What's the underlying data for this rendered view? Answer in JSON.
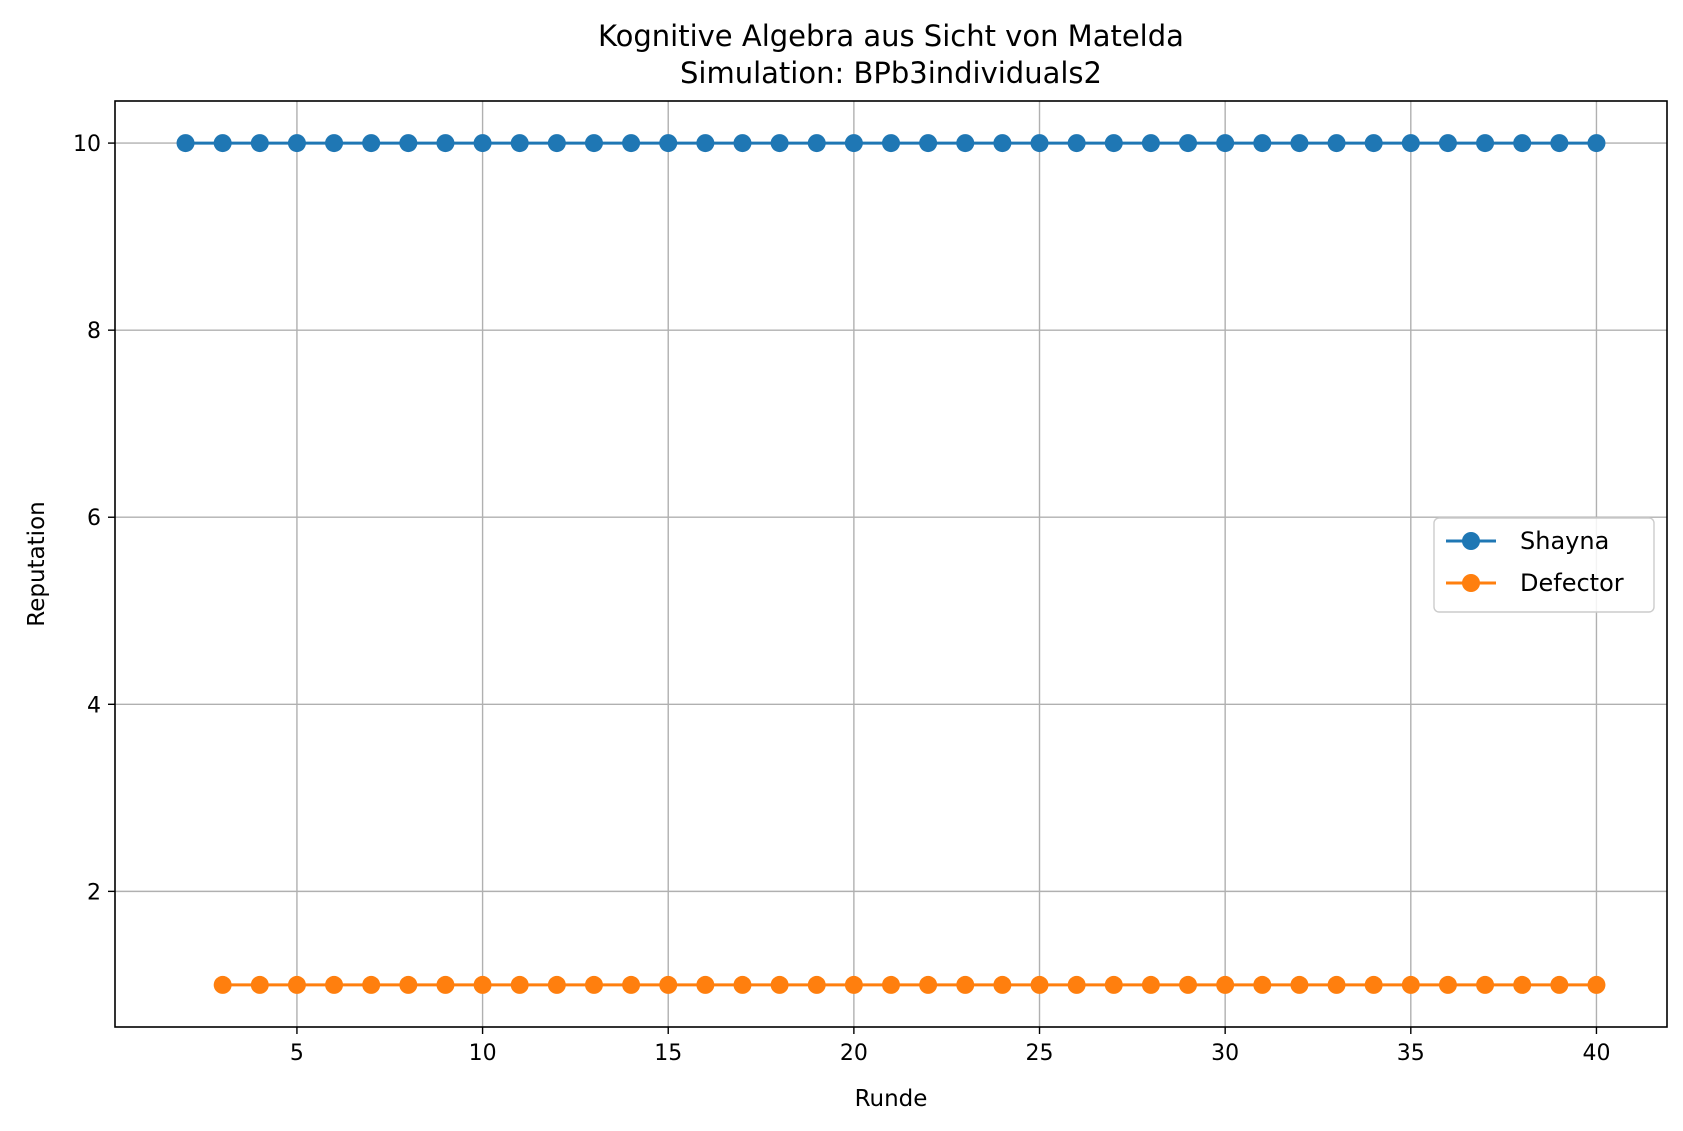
{
  "chart_data": {
    "type": "line",
    "title": "Kognitive Algebra aus Sicht von Matelda",
    "subtitle": "Simulation: BPb3individuals2",
    "xlabel": "Runde",
    "ylabel": "Reputation",
    "xlim": [
      0.1,
      41.9
    ],
    "ylim": [
      0.55,
      10.45
    ],
    "xticks": [
      5,
      10,
      15,
      20,
      25,
      30,
      35,
      40
    ],
    "yticks": [
      2,
      4,
      6,
      8,
      10
    ],
    "grid": true,
    "legend_position": "center-right",
    "series": [
      {
        "name": "Shayna",
        "color": "#1f77b4",
        "marker": "circle",
        "x": [
          2,
          3,
          4,
          5,
          6,
          7,
          8,
          9,
          10,
          11,
          12,
          13,
          14,
          15,
          16,
          17,
          18,
          19,
          20,
          21,
          22,
          23,
          24,
          25,
          26,
          27,
          28,
          29,
          30,
          31,
          32,
          33,
          34,
          35,
          36,
          37,
          38,
          39,
          40
        ],
        "y": [
          10,
          10,
          10,
          10,
          10,
          10,
          10,
          10,
          10,
          10,
          10,
          10,
          10,
          10,
          10,
          10,
          10,
          10,
          10,
          10,
          10,
          10,
          10,
          10,
          10,
          10,
          10,
          10,
          10,
          10,
          10,
          10,
          10,
          10,
          10,
          10,
          10,
          10,
          10
        ]
      },
      {
        "name": "Defector",
        "color": "#ff7f0e",
        "marker": "circle",
        "x": [
          3,
          4,
          5,
          6,
          7,
          8,
          9,
          10,
          11,
          12,
          13,
          14,
          15,
          16,
          17,
          18,
          19,
          20,
          21,
          22,
          23,
          24,
          25,
          26,
          27,
          28,
          29,
          30,
          31,
          32,
          33,
          34,
          35,
          36,
          37,
          38,
          39,
          40
        ],
        "y": [
          1,
          1,
          1,
          1,
          1,
          1,
          1,
          1,
          1,
          1,
          1,
          1,
          1,
          1,
          1,
          1,
          1,
          1,
          1,
          1,
          1,
          1,
          1,
          1,
          1,
          1,
          1,
          1,
          1,
          1,
          1,
          1,
          1,
          1,
          1,
          1,
          1,
          1
        ]
      }
    ]
  }
}
